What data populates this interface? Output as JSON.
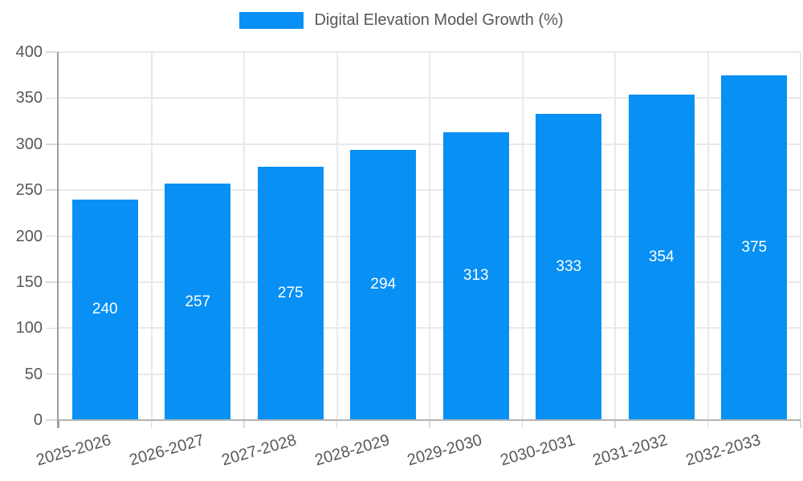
{
  "legend": {
    "label": "Digital Elevation Model Growth (%)"
  },
  "chart_data": {
    "type": "bar",
    "title": "Digital Elevation Model Growth (%)",
    "categories": [
      "2025-2026",
      "2026-2027",
      "2027-2028",
      "2028-2029",
      "2029-2030",
      "2030-2031",
      "2031-2032",
      "2032-2033"
    ],
    "values": [
      240,
      257,
      275,
      294,
      313,
      333,
      354,
      375
    ],
    "xlabel": "",
    "ylabel": "",
    "ylim": [
      0,
      400
    ],
    "ytick_step": 50,
    "grid": true,
    "legend_position": "top",
    "bar_color": "#0890f4",
    "value_label_color": "#ffffff",
    "axis_text_color": "#58585a",
    "gridline_color": "#e9e9e9",
    "axis_line_color": "#9e9e9e",
    "baseline_color": "#b3b3b3"
  }
}
